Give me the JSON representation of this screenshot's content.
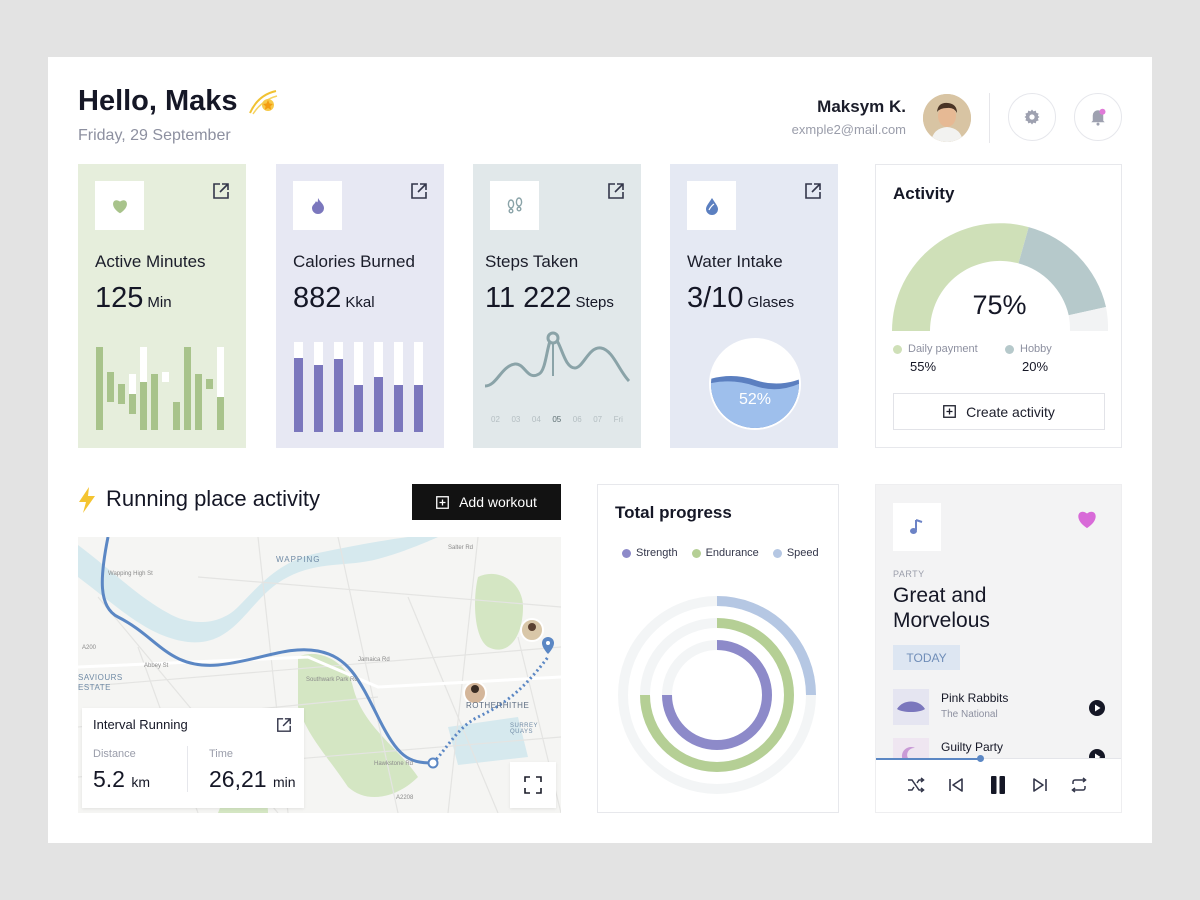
{
  "header": {
    "greeting": "Hello, Maks",
    "date": "Friday, 29 September",
    "user_name": "Maksym K.",
    "user_email": "exmple2@mail.com"
  },
  "cards": [
    {
      "title": "Active Minutes",
      "value": "125",
      "unit": "Min",
      "icon": "heart-icon",
      "bg": "#e6eedc",
      "accent": "#a8c38b"
    },
    {
      "title": "Calories Burned",
      "value": "882",
      "unit": "Kkal",
      "icon": "flame-icon",
      "bg": "#e7e8f3",
      "accent": "#7b77bd"
    },
    {
      "title": "Steps Taken",
      "value": "11 222",
      "unit": "Steps",
      "icon": "footprints-icon",
      "bg": "#e1e8ea",
      "accent": "#8aa3a8"
    },
    {
      "title": "Water Intake",
      "value": "3/10",
      "unit": "Glases",
      "icon": "drop-icon",
      "bg": "#e5e9f3",
      "accent": "#8aaee3"
    }
  ],
  "steps_days": [
    "02",
    "03",
    "04",
    "05",
    "06",
    "07",
    "Fri"
  ],
  "water_percent": "52%",
  "activity": {
    "title": "Activity",
    "percent": "75%",
    "legend": [
      {
        "label": "Daily payment",
        "value": "55%",
        "color": "#cfe0b8"
      },
      {
        "label": "Hobby",
        "value": "20%",
        "color": "#b6c9cb"
      }
    ],
    "create_label": "Create activity"
  },
  "running": {
    "title": "Running place activity",
    "add_label": "Add workout",
    "interval_title": "Interval Running",
    "distance_label": "Distance",
    "distance_value": "5.2",
    "distance_unit": "km",
    "time_label": "Time",
    "time_value": "26,21",
    "time_unit": "min"
  },
  "map_labels": [
    "WAPPING",
    "ROTHERHITHE",
    "SAVIOURS",
    "ESTATE",
    "SURREY QUAYS",
    "A200",
    "A2208",
    "Abbey St",
    "Southwark Park Rd",
    "Jamaica Rd",
    "Hawkstone Rd",
    "Wapping High St",
    "Salter Rd"
  ],
  "progress": {
    "title": "Total progress",
    "legend": [
      {
        "label": "Strength",
        "color": "#8d8ac9"
      },
      {
        "label": "Endurance",
        "color": "#b5cf95"
      },
      {
        "label": "Speed",
        "color": "#b5c7e3"
      }
    ]
  },
  "music": {
    "genre": "PARTY",
    "title_line1": "Great and",
    "title_line2": "Morvelous",
    "today_label": "TODAY",
    "tracks": [
      {
        "name": "Pink Rabbits",
        "artist": "The National"
      },
      {
        "name": "Guilty Party",
        "artist": ""
      }
    ]
  }
}
